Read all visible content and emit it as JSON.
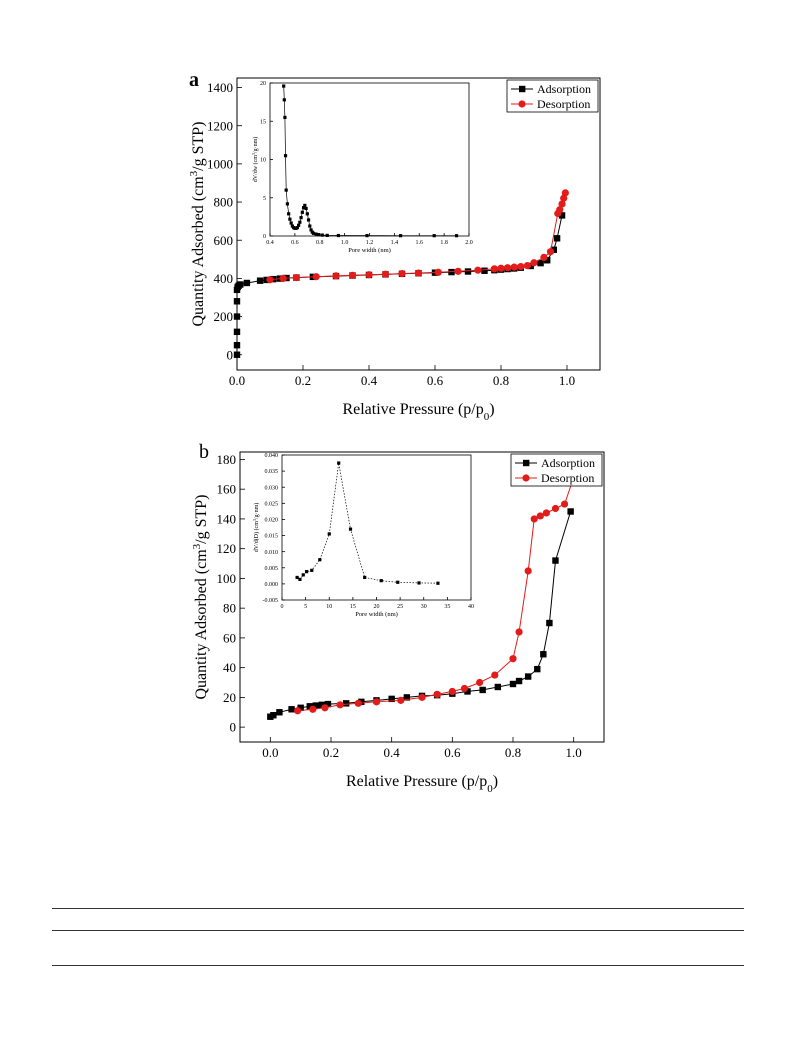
{
  "figure": {
    "panel_a_letter": "a",
    "panel_b_letter": "b"
  },
  "chart_data": [
    {
      "id": "a_main",
      "type": "scatter",
      "panel": "a",
      "xlabel_main": "Relative Pressure (p/p",
      "xlabel_sub": "0",
      "xlabel_end": ")",
      "ylabel_pre": "Quantity Adsorbed (cm",
      "ylabel_sup": "3",
      "ylabel_post": "/g STP)",
      "xlim": [
        0,
        1.1
      ],
      "ylim": [
        -80,
        1450
      ],
      "x_ticks": [
        0.0,
        0.2,
        0.4,
        0.6,
        0.8,
        1.0
      ],
      "x_tick_labels": [
        "0.0",
        "0.2",
        "0.4",
        "0.6",
        "0.8",
        "1.0"
      ],
      "y_ticks": [
        0,
        200,
        400,
        600,
        800,
        1000,
        1200,
        1400
      ],
      "y_tick_labels": [
        "0",
        "200",
        "400",
        "600",
        "800",
        "1000",
        "1200",
        "1400"
      ],
      "legend": "top-right",
      "colors": {
        "adsorption": "#000000",
        "desorption": "#e21b1b"
      },
      "series": [
        {
          "name": "Adsorption",
          "marker": "square",
          "x": [
            0.0,
            0.0,
            0.0,
            0.0,
            0.0,
            0.0,
            0.002,
            0.005,
            0.01,
            0.03,
            0.07,
            0.09,
            0.11,
            0.13,
            0.15,
            0.18,
            0.23,
            0.3,
            0.35,
            0.4,
            0.45,
            0.5,
            0.55,
            0.6,
            0.65,
            0.7,
            0.75,
            0.78,
            0.8,
            0.82,
            0.84,
            0.86,
            0.89,
            0.92,
            0.94,
            0.96,
            0.97,
            0.985
          ],
          "y": [
            0,
            50,
            120,
            200,
            280,
            340,
            355,
            362,
            368,
            376,
            388,
            392,
            396,
            399,
            402,
            404,
            408,
            412,
            415,
            418,
            421,
            424,
            427,
            430,
            433,
            436,
            440,
            443,
            446,
            449,
            452,
            456,
            465,
            480,
            495,
            550,
            610,
            730
          ]
        },
        {
          "name": "Desorption",
          "marker": "circle",
          "x": [
            0.995,
            0.99,
            0.985,
            0.978,
            0.972,
            0.95,
            0.93,
            0.9,
            0.88,
            0.86,
            0.84,
            0.82,
            0.8,
            0.78,
            0.73,
            0.67,
            0.61,
            0.55,
            0.5,
            0.45,
            0.4,
            0.35,
            0.3,
            0.24,
            0.18,
            0.14,
            0.1
          ],
          "y": [
            848,
            820,
            790,
            760,
            740,
            540,
            510,
            482,
            467,
            462,
            459,
            456,
            453,
            450,
            443,
            437,
            432,
            428,
            425,
            422,
            419,
            416,
            413,
            409,
            404,
            400,
            393
          ]
        }
      ]
    },
    {
      "id": "a_inset",
      "type": "scatter",
      "panel": "a",
      "xlabel": "Pore width (nm)",
      "ylabel_pre": "dV/dw (cm",
      "ylabel_sup": "3",
      "ylabel_post": "/g·nm)",
      "xlim": [
        0.4,
        2.0
      ],
      "ylim": [
        0,
        20
      ],
      "x_ticks": [
        0.4,
        0.6,
        0.8,
        1.0,
        1.2,
        1.4,
        1.6,
        1.8,
        2.0
      ],
      "x_tick_labels": [
        "0.4",
        "0.6",
        "0.8",
        "1.0",
        "1.2",
        "1.4",
        "1.6",
        "1.8",
        "2.0"
      ],
      "y_ticks": [
        0,
        5,
        10,
        15,
        20
      ],
      "y_tick_labels": [
        "0",
        "5",
        "10",
        "15",
        "20"
      ],
      "series": [
        {
          "marker": "square",
          "x": [
            0.51,
            0.515,
            0.52,
            0.525,
            0.53,
            0.54,
            0.55,
            0.56,
            0.57,
            0.58,
            0.59,
            0.6,
            0.61,
            0.62,
            0.63,
            0.64,
            0.65,
            0.66,
            0.67,
            0.68,
            0.69,
            0.7,
            0.71,
            0.72,
            0.73,
            0.74,
            0.75,
            0.77,
            0.79,
            0.82,
            0.86,
            0.95,
            1.18,
            1.45,
            1.72,
            1.9
          ],
          "y": [
            19.6,
            17.8,
            15.5,
            10.5,
            6.0,
            4.2,
            2.9,
            2.2,
            1.7,
            1.3,
            1.1,
            1.0,
            1.0,
            1.1,
            1.4,
            1.8,
            2.4,
            3.1,
            3.7,
            4.0,
            3.6,
            2.9,
            2.1,
            1.3,
            0.8,
            0.5,
            0.35,
            0.25,
            0.18,
            0.12,
            0.08,
            0.06,
            0.05,
            0.04,
            0.04,
            0.04
          ]
        }
      ]
    },
    {
      "id": "b_main",
      "type": "scatter",
      "panel": "b",
      "xlabel_main": "Relative Pressure (p/p",
      "xlabel_sub": "0",
      "xlabel_end": ")",
      "ylabel_pre": "Quantity Adsorbed (cm",
      "ylabel_sup": "3",
      "ylabel_post": "/g STP)",
      "xlim": [
        -0.1,
        1.1
      ],
      "ylim": [
        -10,
        185
      ],
      "x_ticks": [
        0.0,
        0.2,
        0.4,
        0.6,
        0.8,
        1.0
      ],
      "x_tick_labels": [
        "0.0",
        "0.2",
        "0.4",
        "0.6",
        "0.8",
        "1.0"
      ],
      "y_ticks": [
        0,
        20,
        40,
        60,
        80,
        100,
        120,
        140,
        160,
        180
      ],
      "y_tick_labels": [
        "0",
        "20",
        "40",
        "60",
        "80",
        "100",
        "120",
        "140",
        "160",
        "180"
      ],
      "legend": "top-right",
      "colors": {
        "adsorption": "#000000",
        "desorption": "#e21b1b"
      },
      "series": [
        {
          "name": "Adsorption",
          "marker": "square",
          "x": [
            0.0,
            0.01,
            0.03,
            0.07,
            0.1,
            0.13,
            0.15,
            0.17,
            0.19,
            0.25,
            0.3,
            0.35,
            0.4,
            0.45,
            0.5,
            0.55,
            0.6,
            0.65,
            0.7,
            0.75,
            0.8,
            0.82,
            0.85,
            0.88,
            0.9,
            0.92,
            0.94,
            0.99
          ],
          "y": [
            7,
            8,
            10,
            12,
            13,
            14,
            14.5,
            15,
            15.5,
            16,
            17,
            18,
            19,
            20,
            21,
            21.5,
            22.5,
            24,
            25,
            27,
            29,
            31,
            34,
            39,
            49,
            70,
            112,
            145
          ]
        },
        {
          "name": "Desorption",
          "marker": "circle",
          "x": [
            1.0,
            0.97,
            0.94,
            0.91,
            0.89,
            0.87,
            0.85,
            0.82,
            0.8,
            0.74,
            0.69,
            0.64,
            0.6,
            0.55,
            0.5,
            0.43,
            0.35,
            0.29,
            0.23,
            0.18,
            0.14,
            0.09
          ],
          "y": [
            168,
            150,
            147,
            144,
            142,
            140,
            105,
            64,
            46,
            35,
            30,
            26,
            24,
            22,
            20,
            18,
            17,
            16,
            15,
            13,
            12,
            11
          ]
        }
      ]
    },
    {
      "id": "b_inset",
      "type": "line",
      "panel": "b",
      "xlabel": "Pore width (nm)",
      "ylabel_pre": "dV/d(D) (cm",
      "ylabel_sup": "3",
      "ylabel_post": "/g·nm)",
      "xlim": [
        0,
        40
      ],
      "ylim": [
        -0.005,
        0.04
      ],
      "x_ticks": [
        0,
        5,
        10,
        15,
        20,
        25,
        30,
        35,
        40
      ],
      "x_tick_labels": [
        "0",
        "5",
        "10",
        "15",
        "20",
        "25",
        "30",
        "35",
        "40"
      ],
      "y_ticks": [
        -0.005,
        0.0,
        0.005,
        0.01,
        0.015,
        0.02,
        0.025,
        0.03,
        0.035,
        0.04
      ],
      "y_tick_labels": [
        "-0.005",
        "0.000",
        "0.005",
        "0.010",
        "0.015",
        "0.020",
        "0.025",
        "0.030",
        "0.035",
        "0.040"
      ],
      "series": [
        {
          "marker": "square",
          "line": "dotted",
          "x": [
            3.2,
            3.8,
            4.5,
            5.2,
            6.3,
            8.0,
            10.0,
            12.0,
            14.5,
            17.5,
            21.0,
            24.5,
            29.0,
            33.0
          ],
          "y": [
            0.002,
            0.0014,
            0.0028,
            0.0038,
            0.0042,
            0.0075,
            0.0155,
            0.0375,
            0.017,
            0.002,
            0.001,
            0.0005,
            0.0003,
            0.0002
          ]
        }
      ]
    }
  ]
}
